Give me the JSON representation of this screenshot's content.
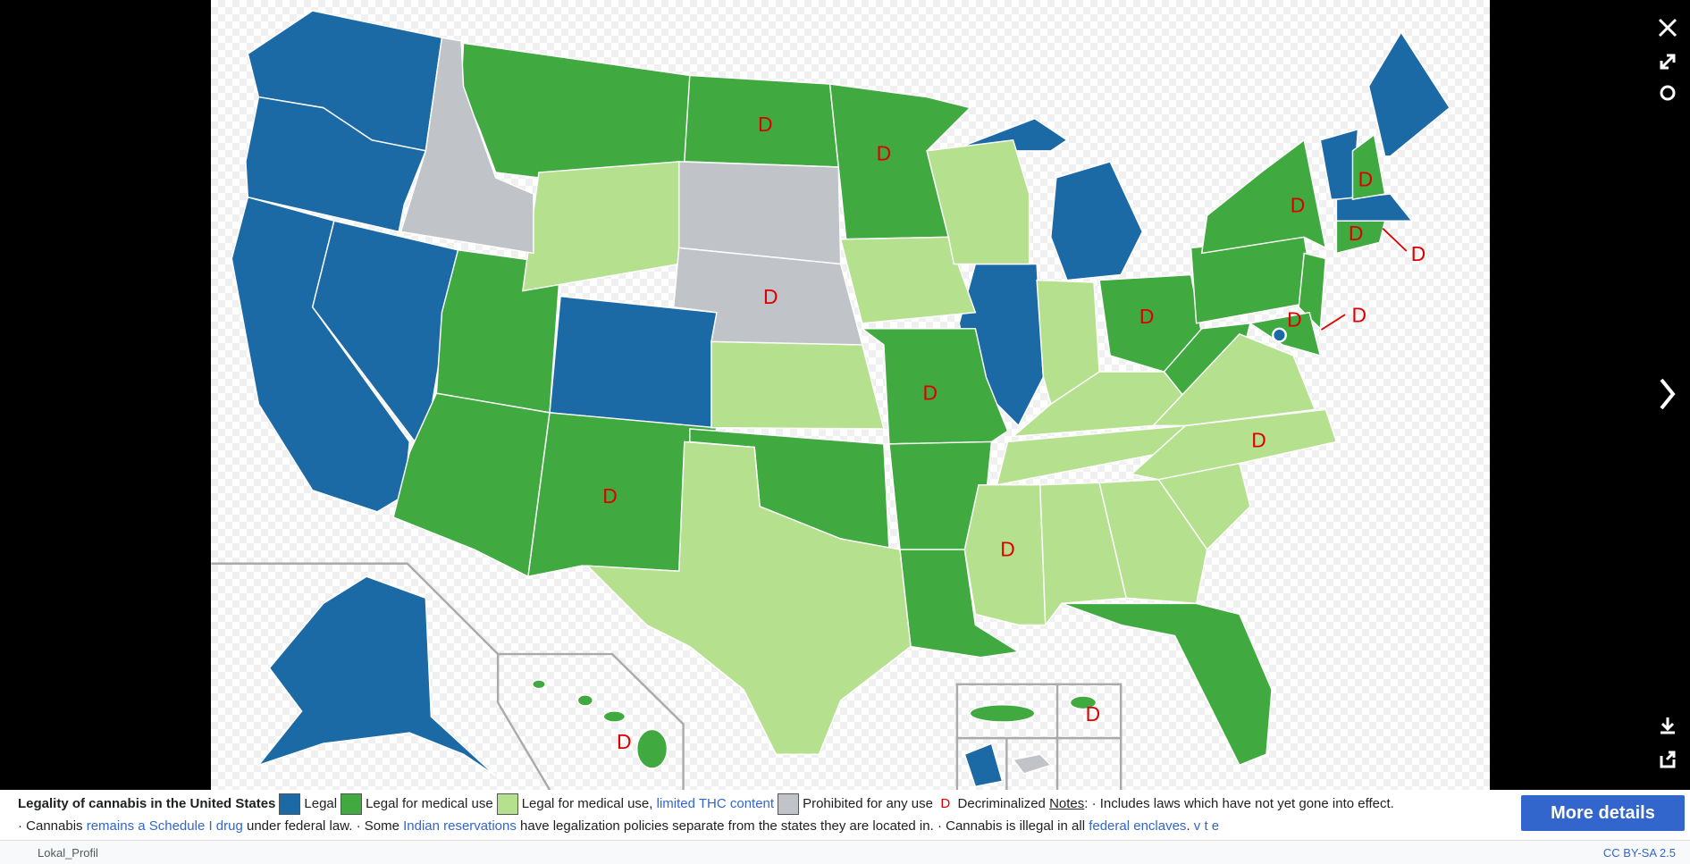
{
  "map": {
    "decriminalized_mark": "D"
  },
  "caption": {
    "title": "Legality of cannabis in the United States",
    "legend": [
      "Legal",
      "Legal for medical use",
      "Legal for medical use, ",
      "limited THC content",
      "Prohibited for any use"
    ],
    "decriminalized_mark": "D",
    "decriminalized": "Decriminalized",
    "notes": "Notes",
    "note1": ": · Includes laws which have not yet gone into effect.",
    "line2": [
      "· Cannabis ",
      "remains a Schedule I drug",
      " under federal law. · Some ",
      "Indian reservations",
      " have legalization policies separate from the states they are located in. · Cannabis is illegal in all ",
      "federal enclaves",
      ". "
    ],
    "vte": [
      "v",
      "t",
      "e"
    ]
  },
  "footer": {
    "author": "Lokal_Profil",
    "license": "CC BY-SA 2.5",
    "button": "More details"
  }
}
